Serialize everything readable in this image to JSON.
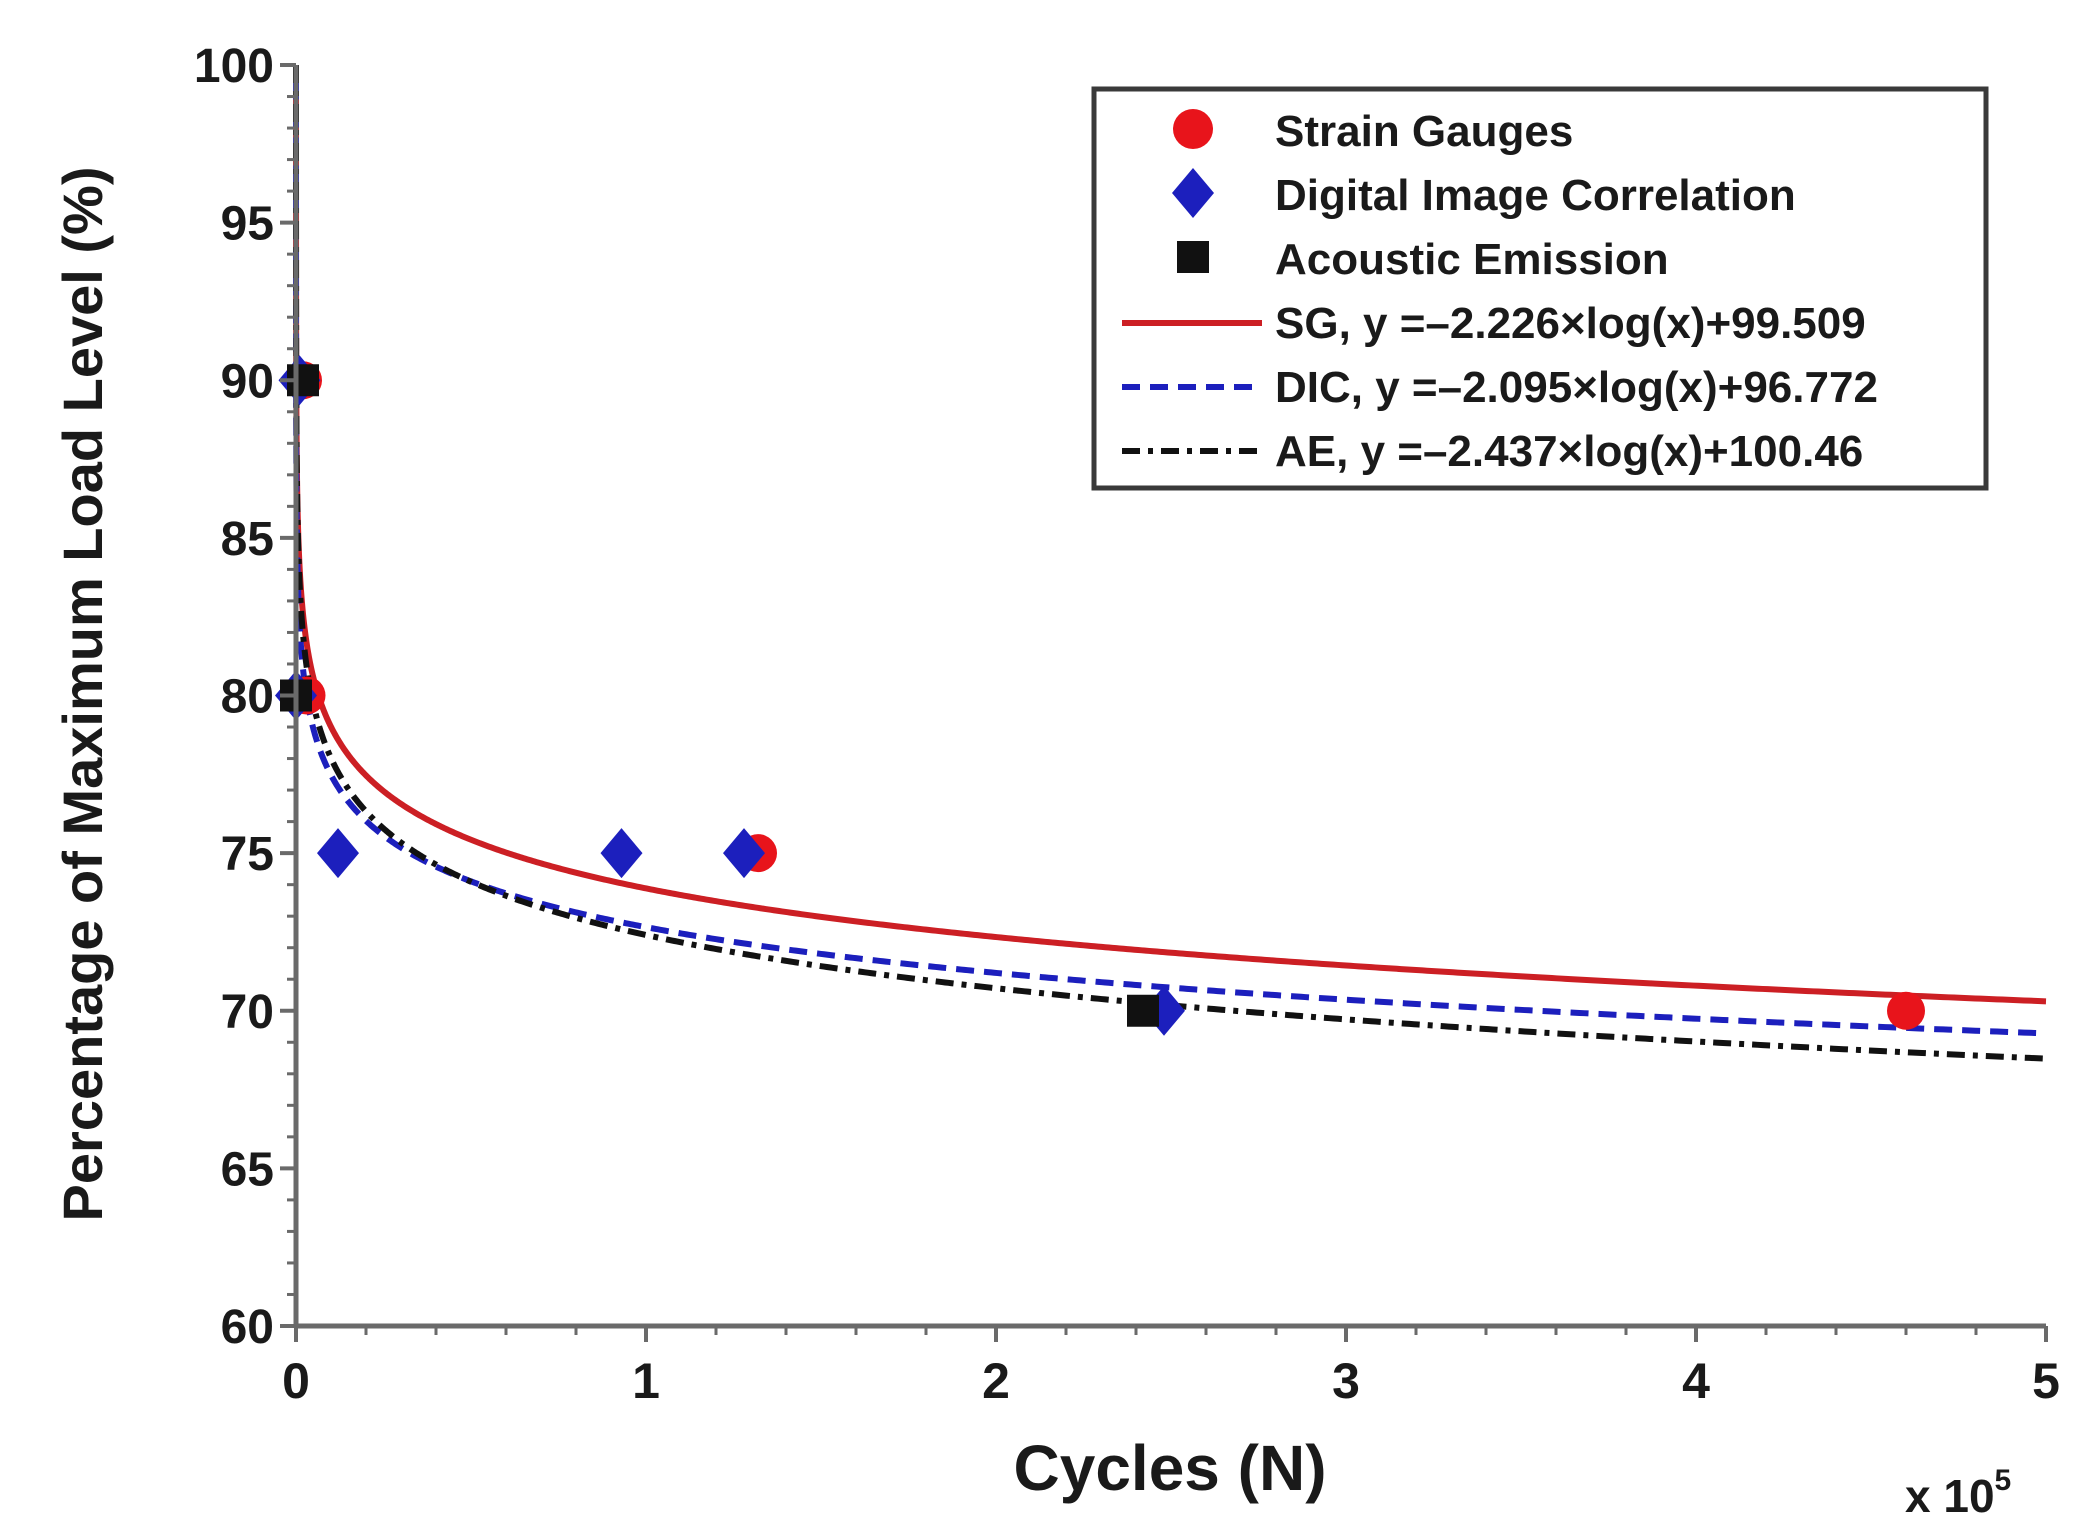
{
  "chart_data": {
    "type": "scatter",
    "title": "",
    "xlabel": "Cycles (N)",
    "ylabel": "Percentage of Maximum Load Level (%)",
    "x_multiplier_label": "x 10",
    "x_multiplier_exponent": "5",
    "x_scale": 100000,
    "xlim": [
      0,
      5
    ],
    "ylim": [
      60,
      100
    ],
    "x_ticks": [
      0,
      1,
      2,
      3,
      4,
      5
    ],
    "y_ticks": [
      60,
      65,
      70,
      75,
      80,
      85,
      90,
      95,
      100
    ],
    "grid": false,
    "legend_position": "top-right",
    "series": [
      {
        "name": "Strain Gauges",
        "kind": "points",
        "marker": "circle",
        "color": "#e8141b",
        "x": [
          0.02,
          0.03,
          1.32,
          4.6
        ],
        "y": [
          90,
          80,
          75,
          70
        ]
      },
      {
        "name": "Digital Image Correlation",
        "kind": "points",
        "marker": "diamond",
        "color": "#1c1fbd",
        "x": [
          0.01,
          0.0,
          0.12,
          0.93,
          1.28,
          2.48
        ],
        "y": [
          90,
          80,
          75,
          75,
          75,
          70
        ]
      },
      {
        "name": "Acoustic Emission",
        "kind": "points",
        "marker": "square",
        "color": "#111111",
        "x": [
          0.02,
          0.0,
          2.42
        ],
        "y": [
          90,
          80,
          70
        ]
      },
      {
        "name": "SG, y =–2.226×log(x)+99.509",
        "kind": "fit",
        "line_style": "solid",
        "color": "#cc1f24",
        "coef_a": -2.226,
        "coef_b": 99.509
      },
      {
        "name": "DIC, y =–2.095×log(x)+96.772",
        "kind": "fit",
        "line_style": "dashed",
        "color": "#1c1fbd",
        "coef_a": -2.095,
        "coef_b": 96.772
      },
      {
        "name": "AE, y =–2.437×log(x)+100.46",
        "kind": "fit",
        "line_style": "dashdot",
        "color": "#111111",
        "coef_a": -2.437,
        "coef_b": 100.46
      }
    ]
  }
}
